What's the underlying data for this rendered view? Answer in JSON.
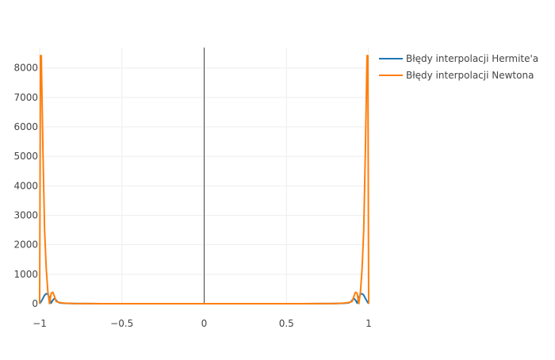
{
  "chart_data": {
    "type": "line",
    "title": "",
    "xlabel": "",
    "ylabel": "",
    "xlim": [
      -1,
      1
    ],
    "ylim": [
      0,
      8800
    ],
    "xticks": [
      -1,
      -0.5,
      0,
      0.5,
      1
    ],
    "xtick_labels": [
      "−1",
      "−0.5",
      "0",
      "0.5",
      "1"
    ],
    "yticks": [
      0,
      1000,
      2000,
      3000,
      4000,
      5000,
      6000,
      7000,
      8000
    ],
    "ytick_labels": [
      "0",
      "1000",
      "2000",
      "3000",
      "4000",
      "5000",
      "6000",
      "7000",
      "8000"
    ],
    "grid": true,
    "zero_line_x": true,
    "legend_position": "top-right outside",
    "series": [
      {
        "name": "Błędy interpolacji Hermite'a",
        "color": "#1f77b4",
        "x": [
          -1,
          -0.99,
          -0.98,
          -0.97,
          -0.96,
          -0.95,
          -0.94,
          -0.93,
          -0.92,
          -0.91,
          -0.9,
          -0.89,
          -0.88,
          -0.85,
          -0.8,
          -0.75,
          -0.7,
          -0.5,
          0,
          0.5,
          0.7,
          0.75,
          0.8,
          0.85,
          0.88,
          0.89,
          0.9,
          0.91,
          0.92,
          0.93,
          0.94,
          0.95,
          0.96,
          0.97,
          0.98,
          0.99,
          1
        ],
        "y": [
          0,
          80,
          180,
          290,
          340,
          320,
          200,
          20,
          120,
          180,
          120,
          60,
          30,
          12,
          5,
          3,
          2,
          1,
          0,
          1,
          2,
          3,
          5,
          12,
          30,
          60,
          120,
          180,
          120,
          20,
          200,
          320,
          340,
          290,
          180,
          80,
          0
        ]
      },
      {
        "name": "Błędy interpolacji Newtona",
        "color": "#ff7f0e",
        "x": [
          -1,
          -0.995,
          -0.99,
          -0.98,
          -0.97,
          -0.96,
          -0.95,
          -0.94,
          -0.93,
          -0.92,
          -0.91,
          -0.9,
          -0.89,
          -0.88,
          -0.85,
          -0.8,
          -0.75,
          -0.7,
          -0.5,
          0,
          0.5,
          0.7,
          0.75,
          0.8,
          0.85,
          0.88,
          0.89,
          0.9,
          0.91,
          0.92,
          0.93,
          0.94,
          0.95,
          0.96,
          0.97,
          0.98,
          0.99,
          0.995,
          1
        ],
        "y": [
          0,
          8420,
          8420,
          5200,
          2500,
          1200,
          400,
          0,
          350,
          390,
          250,
          80,
          60,
          40,
          20,
          8,
          4,
          2,
          1,
          0,
          1,
          2,
          4,
          8,
          20,
          40,
          60,
          80,
          250,
          390,
          350,
          0,
          400,
          1200,
          2500,
          5200,
          8420,
          8420,
          0
        ]
      }
    ]
  }
}
